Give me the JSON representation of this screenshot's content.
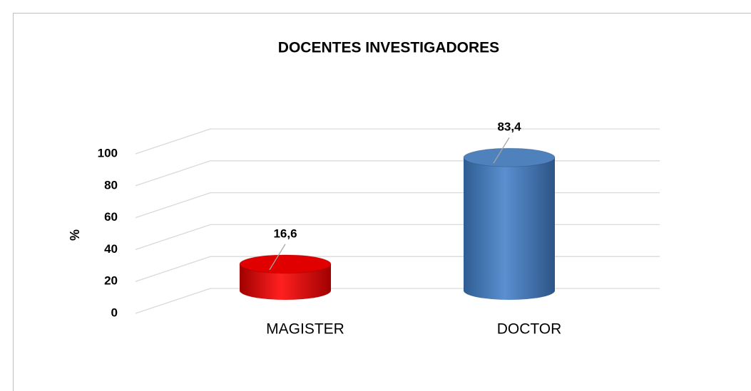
{
  "chart_data": {
    "type": "cylinder",
    "title": "DOCENTES INVESTIGADORES",
    "y_label": "%",
    "categories": [
      "MAGISTER",
      "DOCTOR"
    ],
    "values": [
      16.6,
      83.4
    ],
    "value_labels": [
      "16,6",
      "83,4"
    ],
    "colors": [
      "#e00000",
      "#4f81bd"
    ],
    "ylim": [
      0,
      100
    ],
    "yticks": [
      0,
      20,
      40,
      60,
      80,
      100
    ],
    "grid": true
  }
}
